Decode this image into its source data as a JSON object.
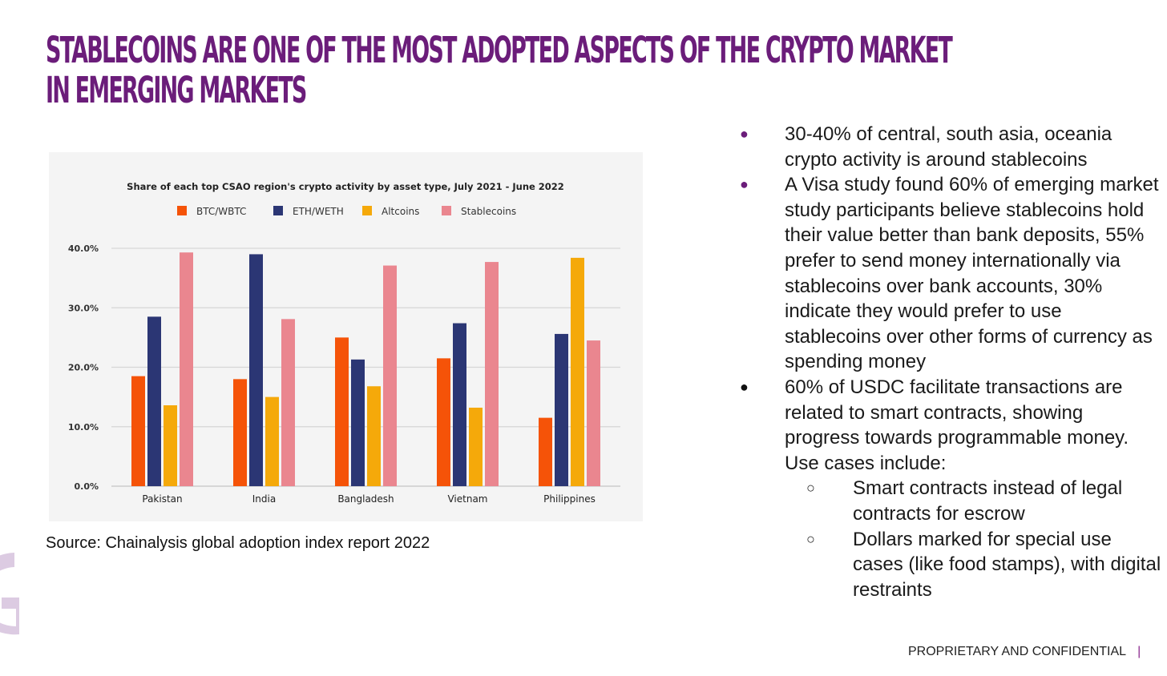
{
  "slide": {
    "title_lines": [
      "STABLECOINS ARE ONE OF THE MOST ADOPTED ASPECTS OF THE CRYPTO MARKET",
      "IN EMERGING MARKETS"
    ],
    "source": "Source: Chainalysis global adoption index report 2022",
    "footer": "PROPRIETARY AND CONFIDENTIAL",
    "footer_separator": "|"
  },
  "bullets": [
    {
      "marker": "●",
      "color": "#6b1d7a",
      "text": "30-40% of central, south asia, oceania crypto activity is around stablecoins"
    },
    {
      "marker": "●",
      "color": "#6b1d7a",
      "text": "A Visa study found 60% of emerging market study participants believe stablecoins hold their value better than bank deposits, 55% prefer to send money internationally via stablecoins over bank accounts, 30% indicate they would prefer to use stablecoins over other forms of currency as spending money"
    },
    {
      "marker": "●",
      "color": "#111111",
      "text": "60% of USDC facilitate transactions are related to smart contracts, showing progress towards programmable money. Use cases include:"
    }
  ],
  "sub_bullets": [
    {
      "marker": "○",
      "text": "Smart contracts instead of legal contracts for escrow"
    },
    {
      "marker": "○",
      "text": "Dollars marked for special use cases (like food stamps), with digital restraints"
    }
  ],
  "colors": {
    "title": "#6b1d7a",
    "btc": "#f55308",
    "eth": "#2b3674",
    "alt": "#f5a90a",
    "stable": "#ea868f"
  },
  "chart_data": {
    "type": "bar",
    "title": "Share of each top CSAO region's crypto activity by asset type, July 2021 - June 2022",
    "categories": [
      "Pakistan",
      "India",
      "Bangladesh",
      "Vietnam",
      "Philippines"
    ],
    "series": [
      {
        "name": "BTC/WBTC",
        "color": "#f55308",
        "values": [
          18.5,
          18.0,
          25.0,
          21.5,
          11.5
        ]
      },
      {
        "name": "ETH/WETH",
        "color": "#2b3674",
        "values": [
          28.5,
          39.0,
          21.3,
          27.4,
          25.6
        ]
      },
      {
        "name": "Altcoins",
        "color": "#f5a90a",
        "values": [
          13.6,
          15.0,
          16.8,
          13.2,
          38.4
        ]
      },
      {
        "name": "Stablecoins",
        "color": "#ea868f",
        "values": [
          39.3,
          28.1,
          37.1,
          37.7,
          24.5
        ]
      }
    ],
    "yticks": [
      "0.0%",
      "10.0%",
      "20.0%",
      "30.0%",
      "40.0%"
    ],
    "ytick_values": [
      0,
      10,
      20,
      30,
      40
    ],
    "ylim": [
      0,
      40
    ],
    "xlabel": "",
    "ylabel": "",
    "grid": true,
    "legend_position": "top"
  }
}
